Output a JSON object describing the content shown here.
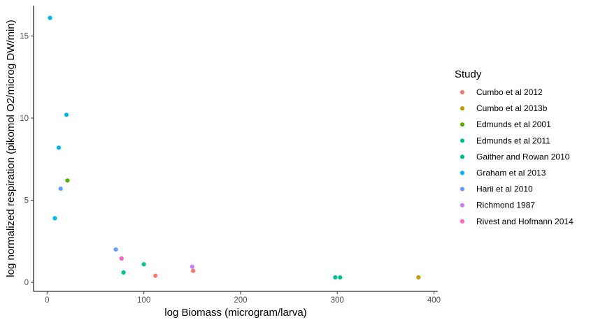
{
  "chart_data": {
    "type": "scatter",
    "title": "",
    "xlabel": "log Biomass (microgram/larva)",
    "ylabel": "log normalized respiration (pikomol O2/microg DW/min)",
    "xlim": [
      -14,
      404
    ],
    "ylim": [
      -0.55,
      16.85
    ],
    "x_ticks": [
      0,
      100,
      200,
      300,
      400
    ],
    "x_tick_labels": [
      "0",
      "100",
      "200",
      "300",
      "400"
    ],
    "y_ticks": [
      0,
      5,
      10,
      15
    ],
    "y_tick_labels": [
      "0",
      "5",
      "10",
      "15"
    ],
    "grid": false,
    "legend_position": "right",
    "legend_title": "Study",
    "series": [
      {
        "name": "Cumbo et al 2012",
        "color": "#F8766D",
        "points": [
          [
            112,
            0.4
          ],
          [
            151,
            0.7
          ]
        ]
      },
      {
        "name": "Cumbo et al 2013b",
        "color": "#C49A00",
        "points": [
          [
            384,
            0.3
          ]
        ]
      },
      {
        "name": "Edmunds et al 2001",
        "color": "#53B400",
        "points": [
          [
            21,
            6.2
          ]
        ]
      },
      {
        "name": "Edmunds et al 2011",
        "color": "#00C094",
        "points": [
          [
            79,
            0.6
          ],
          [
            298,
            0.3
          ],
          [
            303,
            0.3
          ]
        ]
      },
      {
        "name": "Gaither and Rowan 2010",
        "color": "#00C094",
        "points": [
          [
            100,
            1.1
          ]
        ]
      },
      {
        "name": "Graham et al 2013",
        "color": "#00B6EB",
        "points": [
          [
            3,
            16.1
          ],
          [
            20,
            10.2
          ],
          [
            12,
            8.2
          ],
          [
            8,
            3.9
          ]
        ]
      },
      {
        "name": "Harii et al 2010",
        "color": "#619CFF",
        "points": [
          [
            14,
            5.7
          ],
          [
            71,
            2.0
          ]
        ]
      },
      {
        "name": "Richmond 1987",
        "color": "#C77CFF",
        "points": [
          [
            150,
            0.95
          ]
        ]
      },
      {
        "name": "Rivest and Hofmann 2014",
        "color": "#FF61C3",
        "points": [
          [
            77,
            1.45
          ]
        ]
      }
    ]
  },
  "legend_colors": [
    "#F8766D",
    "#C49A00",
    "#53B400",
    "#00C094",
    "#00C094",
    "#00B6EB",
    "#619CFF",
    "#C77CFF",
    "#FF61C3"
  ]
}
